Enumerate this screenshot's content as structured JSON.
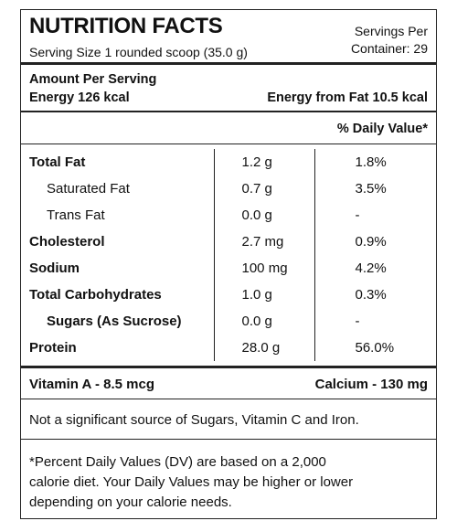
{
  "header": {
    "title": "NUTRITION FACTS",
    "serving_size": "Serving Size 1 rounded scoop (35.0 g)",
    "servings_per_container": [
      "Servings Per",
      "Container: 29"
    ]
  },
  "energy": {
    "heading": "Amount Per Serving",
    "energy": "Energy 126 kcal",
    "energy_from_fat": "Energy from Fat 10.5 kcal"
  },
  "daily_value_heading": "% Daily Value*",
  "table": {
    "rows": [
      [
        "Total Fat",
        "1.2 g",
        "1.8%"
      ],
      [
        "Saturated Fat",
        "0.7 g",
        "3.5%"
      ],
      [
        "Trans Fat",
        "0.0 g",
        "-"
      ],
      [
        "Cholesterol",
        "2.7 mg",
        "0.9%"
      ],
      [
        "Sodium",
        "100 mg",
        "4.2%"
      ],
      [
        "Total Carbohydrates",
        "1.0 g",
        "0.3%"
      ],
      [
        "Sugars (As Sucrose)",
        "0.0 g",
        "-"
      ],
      [
        "Protein",
        "28.0 g",
        "56.0%"
      ]
    ]
  },
  "vitamins": {
    "vitamin_a": "Vitamin A - 8.5 mcg",
    "calcium": "Calcium - 130 mg"
  },
  "note": "Not a significant source of Sugars, Vitamin C and Iron.",
  "footnote": [
    "*Percent Daily Values (DV) are based on a 2,000",
    "calorie diet. Your Daily Values may be higher or lower",
    "depending on your calorie needs."
  ]
}
